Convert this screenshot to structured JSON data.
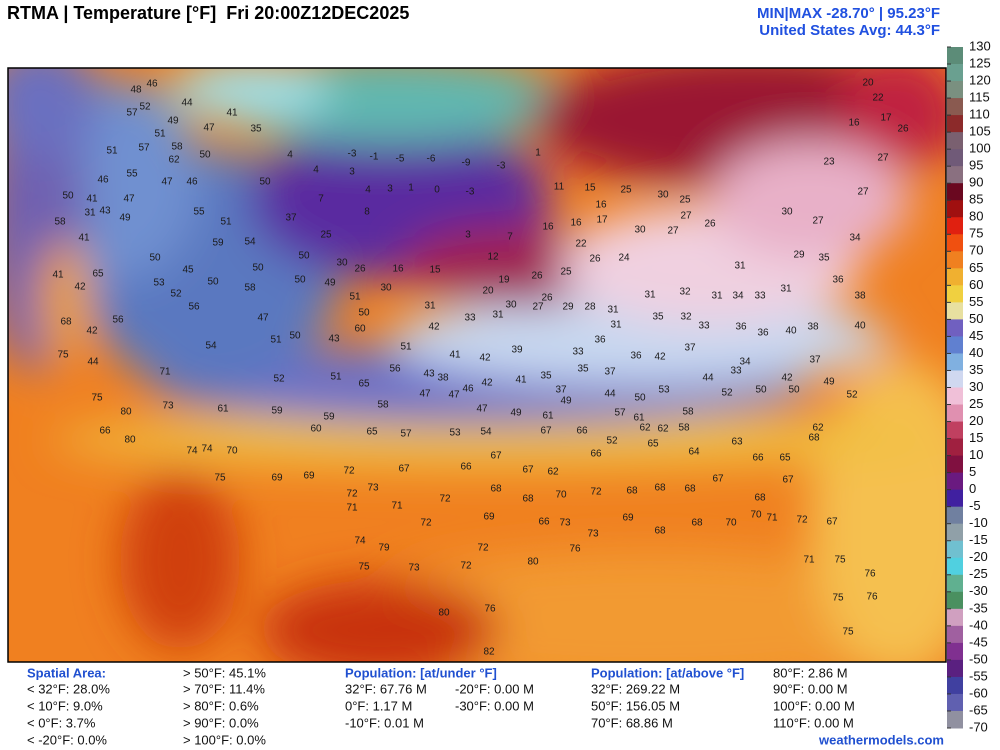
{
  "header": {
    "title": "RTMA | Temperature [°F]  Fri 20:00Z12DEC2025",
    "minmax": "MIN|MAX -28.70° | 95.23°F",
    "average": "United States Avg: 44.3°F"
  },
  "colorbar": {
    "ticks": [
      130,
      125,
      120,
      115,
      110,
      105,
      100,
      95,
      90,
      85,
      80,
      75,
      70,
      65,
      60,
      55,
      50,
      45,
      40,
      35,
      30,
      25,
      20,
      15,
      10,
      5,
      0,
      -5,
      -10,
      -15,
      -20,
      -25,
      -30,
      -35,
      -40,
      -45,
      -50,
      -55,
      -60,
      -65,
      -70
    ]
  },
  "map": {
    "labels": [
      46,
      48,
      52,
      44,
      41,
      57,
      49,
      47,
      35,
      51,
      51,
      57,
      58,
      62,
      50,
      55,
      46,
      47,
      46,
      50,
      50,
      41,
      47,
      43,
      31,
      58,
      49,
      55,
      51,
      37,
      41,
      59,
      54,
      50,
      50,
      45,
      65,
      41,
      53,
      52,
      50,
      25,
      30,
      26,
      30,
      16,
      15,
      12,
      3,
      7,
      -3,
      0,
      1,
      3,
      4,
      3,
      4,
      7,
      8,
      4,
      -3,
      -1,
      -5,
      -6,
      -9,
      -3,
      1,
      11,
      15,
      16,
      16,
      17,
      16,
      22,
      25,
      30,
      25,
      27,
      30,
      27,
      26,
      24,
      26,
      25,
      26,
      26,
      19,
      20,
      31,
      33,
      31,
      30,
      27,
      29,
      28,
      31,
      31,
      32,
      31,
      34,
      33,
      31,
      31,
      29,
      35,
      34,
      27,
      27,
      22,
      20,
      17,
      26,
      16,
      23,
      30,
      27,
      36,
      38,
      40,
      37,
      42,
      49,
      52,
      50,
      50,
      52,
      58,
      58,
      62,
      62,
      61,
      57,
      52,
      66,
      65,
      64,
      63,
      66,
      65,
      68,
      62,
      67,
      68,
      67,
      68,
      68,
      68,
      72,
      70,
      68,
      68,
      72,
      67,
      72,
      69,
      69,
      75,
      74,
      70,
      74,
      80,
      80,
      66,
      75,
      73,
      61,
      59,
      59,
      60,
      65,
      57,
      53,
      54,
      67,
      66,
      66,
      67,
      67,
      62,
      69,
      72,
      71,
      73,
      72,
      71,
      74,
      79,
      73,
      72,
      72,
      66,
      73,
      73,
      69,
      68,
      68,
      70,
      70,
      71,
      72,
      67,
      75,
      76,
      76,
      75,
      75,
      71,
      76,
      80,
      76,
      80,
      75,
      82,
      68,
      75,
      44,
      42,
      56,
      42,
      50,
      49,
      51,
      50,
      60,
      43,
      50,
      51,
      47,
      58,
      50,
      56,
      54,
      71,
      52,
      51,
      65,
      56,
      58,
      51,
      42,
      41,
      42,
      43,
      38,
      46,
      42,
      41,
      35,
      37,
      49,
      35,
      37,
      36,
      42,
      37,
      44,
      53,
      50,
      44,
      47,
      47,
      49,
      61,
      47,
      39,
      33,
      36,
      31,
      35,
      32,
      33,
      36,
      36,
      40,
      38,
      34,
      33
    ]
  },
  "footer": {
    "spatial_area": {
      "title": "Spatial Area:",
      "items": [
        "< 32°F: 28.0%",
        "< 10°F: 9.0%",
        "< 0°F: 3.7%",
        "< -20°F: 0.0%",
        "> 50°F: 45.1%",
        "> 70°F: 11.4%",
        "> 80°F: 0.6%",
        "> 90°F: 0.0%",
        "> 100°F: 0.0%"
      ]
    },
    "population_under": {
      "title": "Population: [at/under °F]",
      "items": [
        "32°F: 67.76 M",
        "0°F: 1.17 M",
        "-10°F: 0.01 M",
        "-20°F: 0.00 M",
        "-30°F: 0.00 M"
      ]
    },
    "population_above": {
      "title": "Population: [at/above °F]",
      "items": [
        "32°F: 269.22 M",
        "50°F: 156.05 M",
        "70°F: 68.86 M",
        "80°F: 2.86 M",
        "90°F: 0.00 M",
        "100°F: 0.00 M",
        "110°F: 0.00 M"
      ]
    },
    "credit": "weathermodels.com"
  }
}
